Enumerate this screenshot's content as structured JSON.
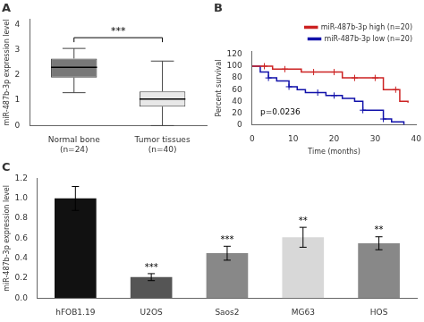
{
  "chart_data": [
    {
      "type": "box",
      "title": "A",
      "ylabel": "miR-487b-3p expression level",
      "categories": [
        "Normal bone\n(n=24)",
        "Tumor tissues\n(n=40)"
      ],
      "boxes": [
        {
          "median": 2.3,
          "q1": 1.9,
          "q3": 2.65,
          "whislo": 1.3,
          "whishi": 3.05
        },
        {
          "median": 1.05,
          "q1": 0.75,
          "q3": 1.35,
          "whislo": 0.0,
          "whishi": 2.55
        }
      ],
      "colors": [
        "#787878",
        "#e8e8e8"
      ],
      "ylim": [
        0,
        4.2
      ],
      "yticks": [
        0,
        1,
        2,
        3,
        4
      ],
      "annotation": "***",
      "grid": false
    },
    {
      "type": "step",
      "title": "B",
      "xlabel": "Time (months)",
      "ylabel": "Percent survival",
      "series": [
        {
          "name": "miR-487b-3p high (n=20)",
          "color": "#cc2222",
          "x": [
            0,
            3,
            5,
            7,
            12,
            15,
            18,
            20,
            22,
            25,
            28,
            30,
            32,
            34,
            36,
            38
          ],
          "values": [
            100,
            100,
            95,
            95,
            90,
            90,
            90,
            90,
            80,
            80,
            80,
            80,
            60,
            60,
            40,
            38
          ],
          "censored": {
            "x": [
              3,
              8,
              15,
              20,
              25,
              30,
              35
            ],
            "values": [
              100,
              95,
              90,
              90,
              80,
              80,
              60
            ]
          }
        },
        {
          "name": "miR-487b-3p low (n=20)",
          "color": "#1111aa",
          "x": [
            0,
            2,
            4,
            6,
            9,
            11,
            13,
            16,
            18,
            20,
            22,
            25,
            27,
            30,
            32,
            34,
            36,
            37
          ],
          "values": [
            100,
            90,
            80,
            75,
            65,
            60,
            55,
            55,
            50,
            50,
            45,
            40,
            25,
            25,
            10,
            5,
            5,
            0
          ],
          "censored": {
            "x": [
              4,
              9,
              16,
              20,
              27,
              32
            ],
            "values": [
              80,
              65,
              55,
              50,
              25,
              10
            ]
          }
        }
      ],
      "xlim": [
        0,
        40
      ],
      "xticks": [
        0,
        10,
        20,
        30,
        40
      ],
      "ylim": [
        0,
        125
      ],
      "yticks": [
        0,
        20,
        40,
        60,
        80,
        100,
        120
      ],
      "legend": "upper right",
      "annotation": "p=0.0236",
      "grid": false
    },
    {
      "type": "bar",
      "title": "C",
      "ylabel": "miR-487b-3p expression level",
      "categories": [
        "hFOB1.19",
        "U2OS",
        "Saos2",
        "MG63",
        "HOS"
      ],
      "values": [
        1.0,
        0.21,
        0.45,
        0.61,
        0.55
      ],
      "errors": [
        0.12,
        0.035,
        0.07,
        0.1,
        0.065
      ],
      "colors": [
        "#111111",
        "#555555",
        "#888888",
        "#d8d8d8",
        "#888888"
      ],
      "annotations": [
        null,
        "***",
        "***",
        "**",
        "**"
      ],
      "ylim": [
        0,
        1.2
      ],
      "yticks": [
        {
          "value": 0.0,
          "label": "0.0"
        },
        0.2,
        0.4,
        0.6,
        0.8,
        {
          "value": 1.0,
          "label": "1.0"
        },
        1.2
      ],
      "grid": false
    }
  ]
}
